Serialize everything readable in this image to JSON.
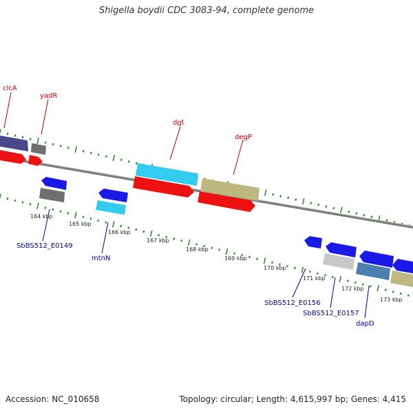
{
  "title": "Shigella boydii CDC 3083-94, complete genome",
  "footer": {
    "accession": "Accession: NC_010658",
    "summary": "Topology: circular; Length: 4,615,997 bp; Genes: 4,415"
  },
  "colors": {
    "backbone": "#8a8a8a",
    "tick": "#2e8b2e",
    "forward_label": "#cc0000",
    "reverse_label": "#0000aa",
    "kbp_label": "#222222"
  },
  "kbp_scale": {
    "labels": [
      "164 kbp",
      "165 kbp",
      "166 kbp",
      "167 kbp",
      "168 kbp",
      "169 kbp",
      "170 kbp",
      "171 kbp",
      "172 kbp",
      "173 kbp"
    ]
  },
  "genes": [
    {
      "name": "clcA",
      "strand": "forward",
      "track": "outer",
      "color": "#4a4a8a",
      "labeled": true
    },
    {
      "name": "yadR",
      "strand": "forward",
      "track": "outer",
      "color": "#6e6e6e",
      "labeled": true
    },
    {
      "name": "dgt",
      "strand": "forward",
      "track": "outer",
      "color": "#33ccee",
      "labeled": true
    },
    {
      "name": "degP",
      "strand": "forward",
      "track": "outer",
      "color": "#bdb780",
      "labeled": true
    },
    {
      "name": "SbBS512_E0149",
      "strand": "reverse",
      "track": "inner",
      "color": "#6e6e6e",
      "labeled": true
    },
    {
      "name": "mtnN",
      "strand": "reverse",
      "track": "inner",
      "color": "#33ccee",
      "labeled": true
    },
    {
      "name": "SbBS512_E0156",
      "strand": "reverse",
      "track": "inner",
      "color": "#1a1ae6",
      "labeled": true
    },
    {
      "name": "SbBS512_E0157",
      "strand": "reverse",
      "track": "inner",
      "color": "#c8c8c8",
      "labeled": true
    },
    {
      "name": "dapD",
      "strand": "reverse",
      "track": "inner",
      "color": "#4a7fb0",
      "labeled": true
    }
  ]
}
